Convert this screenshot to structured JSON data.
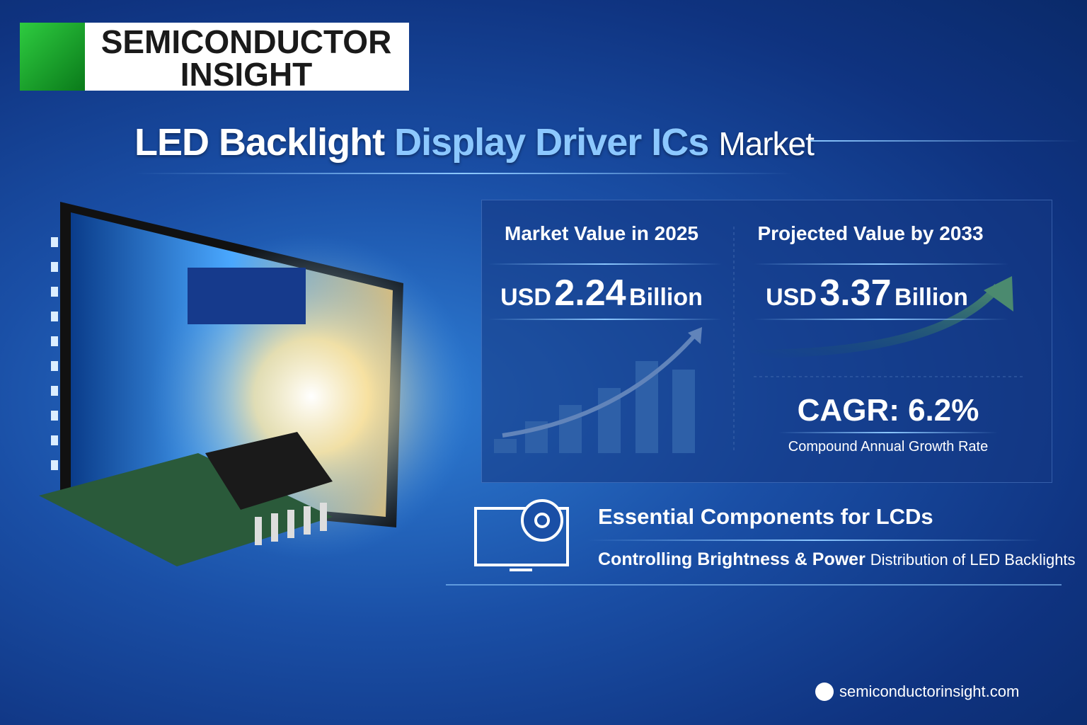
{
  "logo": {
    "line1": "SEMICONDUCTOR",
    "line2": "INSIGHT"
  },
  "title": {
    "part1": "LED Backlight",
    "part2": "Display Driver ICs",
    "part3": "Market"
  },
  "stats": [
    {
      "label": "Market Value in 2025",
      "currency": "USD",
      "amount": "2.24",
      "unit": "Billion"
    },
    {
      "label": "Projected Value by 2033",
      "currency": "USD",
      "amount": "3.37",
      "unit": "Billion"
    }
  ],
  "cagr": {
    "value": "CAGR: 6.2%",
    "caption": "Compound Annual Growth Rate"
  },
  "feature": {
    "title": "Essential Components for LCDs",
    "emphasis": "Controlling Brightness & Power",
    "rest": "Distribution of LED Backlights"
  },
  "footer": {
    "website": "semiconductorinsight.com"
  }
}
